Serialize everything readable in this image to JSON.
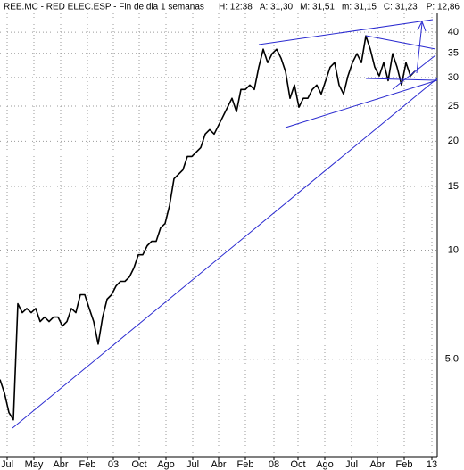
{
  "chart_data": {
    "type": "line",
    "title": "REE.MC - RED ELEC.ESP - Fin de dia 1 semanas",
    "stats": [
      "H: 12:38",
      "A: 31,30",
      "M: 31,51",
      "m: 31,15",
      "C: 31,23"
    ],
    "stats_alert": "P: 12,86",
    "stats_alert_color": "#e00000",
    "log_y": true,
    "grid": true,
    "series": [
      {
        "name": "REE.MC",
        "color": "#000000",
        "values": [
          4.39,
          4.03,
          3.56,
          3.4,
          7.11,
          6.72,
          6.9,
          6.72,
          6.9,
          6.35,
          6.53,
          6.35,
          6.53,
          6.53,
          6.17,
          6.35,
          6.9,
          6.72,
          7.53,
          7.53,
          6.9,
          6.35,
          5.5,
          6.53,
          7.32,
          7.53,
          7.96,
          8.2,
          8.2,
          8.43,
          8.93,
          9.71,
          9.71,
          10.29,
          10.58,
          10.58,
          11.53,
          11.85,
          13.29,
          15.75,
          16.21,
          16.67,
          18.15,
          18.15,
          18.68,
          19.21,
          20.93,
          21.54,
          20.93,
          22.15,
          23.45,
          24.83,
          26.28,
          24.12,
          27.8,
          27.8,
          28.6,
          27.8,
          32.04,
          35.9,
          32.98,
          34.9,
          35.9,
          33.9,
          31.15,
          26.28,
          28.6,
          24.83,
          26.28,
          26.28,
          27.8,
          28.6,
          27.0,
          29.4,
          32.04,
          32.98,
          28.6,
          27.0,
          30.3,
          32.98,
          34.9,
          32.98,
          39.1,
          35.9,
          32.04,
          30.3,
          32.98,
          29.4,
          34.9,
          32.04,
          28.6,
          32.98,
          30.3,
          31.23
        ]
      }
    ],
    "xlim": [
      0,
      98
    ],
    "xticks": [
      {
        "value": 1.6,
        "label": "Jul"
      },
      {
        "value": 7.6,
        "label": "May"
      },
      {
        "value": 13.6,
        "label": "Abr"
      },
      {
        "value": 19.6,
        "label": "Feb"
      },
      {
        "value": 25.4,
        "label": "03"
      },
      {
        "value": 31.2,
        "label": "Oct"
      },
      {
        "value": 37.2,
        "label": "Ago"
      },
      {
        "value": 43.2,
        "label": "Jul"
      },
      {
        "value": 49,
        "label": "Abr"
      },
      {
        "value": 55,
        "label": "Feb"
      },
      {
        "value": 61.4,
        "label": "08"
      },
      {
        "value": 66.8,
        "label": "Oct"
      },
      {
        "value": 72.8,
        "label": "Ago"
      },
      {
        "value": 78.8,
        "label": "Jul"
      },
      {
        "value": 84.6,
        "label": "Abr"
      },
      {
        "value": 90.6,
        "label": "Feb"
      },
      {
        "value": 96.8,
        "label": "13"
      }
    ],
    "ylim": [
      2.72,
      45.1
    ],
    "yticks": [
      {
        "value": 5,
        "label": "5,0"
      },
      10,
      15,
      20,
      25,
      30,
      35,
      40
    ]
  }
}
